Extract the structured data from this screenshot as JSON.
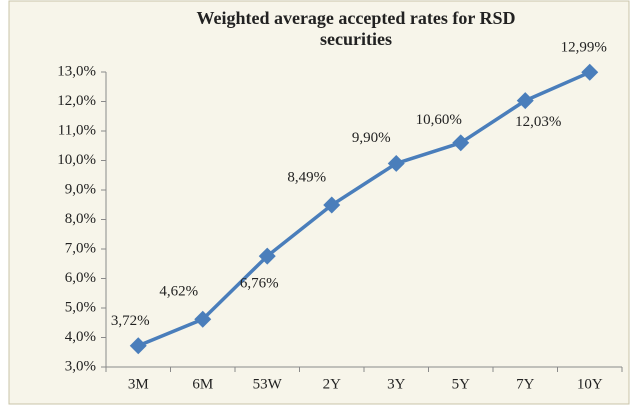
{
  "chart_data": {
    "type": "line",
    "title": [
      "Weighted average accepted rates for RSD",
      "securities"
    ],
    "categories": [
      "3M",
      "6M",
      "53W",
      "2Y",
      "3Y",
      "5Y",
      "7Y",
      "10Y"
    ],
    "series": [
      {
        "name": "Weighted average accepted rate",
        "color": "#4a7ebb",
        "values": [
          3.72,
          4.62,
          6.76,
          8.49,
          9.9,
          10.6,
          12.03,
          12.99
        ],
        "value_labels": [
          "3,72%",
          "4,62%",
          "6,76%",
          "8,49%",
          "9,90%",
          "10,60%",
          "12,03%",
          "12,99%"
        ]
      }
    ],
    "ylim": [
      3,
      13
    ],
    "yticks": [
      {
        "value": 3,
        "label": "3,0%"
      },
      {
        "value": 4,
        "label": "4,0%"
      },
      {
        "value": 5,
        "label": "5,0%"
      },
      {
        "value": 6,
        "label": "6,0%"
      },
      {
        "value": 7,
        "label": "7,0%"
      },
      {
        "value": 8,
        "label": "8,0%"
      },
      {
        "value": 9,
        "label": "9,0%"
      },
      {
        "value": 10,
        "label": "10,0%"
      },
      {
        "value": 11,
        "label": "11,0%"
      },
      {
        "value": 12,
        "label": "12,0%"
      },
      {
        "value": 13,
        "label": "13,0%"
      }
    ],
    "grid": false
  }
}
